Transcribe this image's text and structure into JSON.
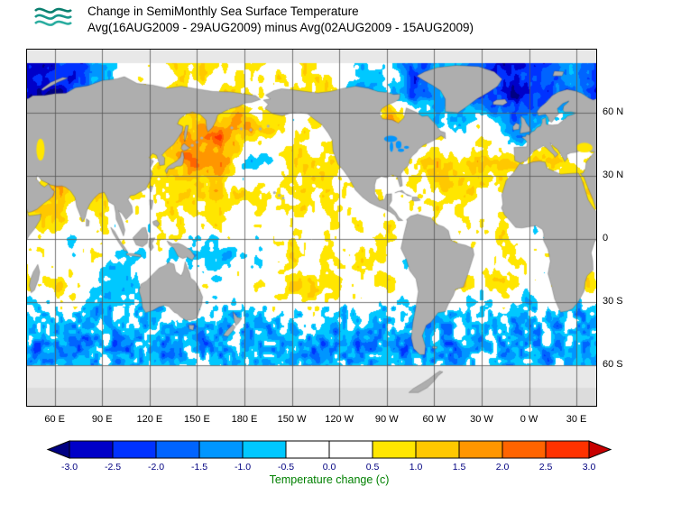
{
  "header": {
    "title_line1": "Change in SemiMonthly Sea Surface Temperature",
    "title_line2": "Avg(16AUG2009 - 29AUG2009) minus Avg(02AUG2009 - 15AUG2009)",
    "logo_wave_colors": [
      "#0a7f6f",
      "#17968a",
      "#2badA0"
    ]
  },
  "chart_data": {
    "type": "heatmap",
    "title": "Change in SemiMonthly Sea Surface Temperature",
    "subtitle": "Avg(16AUG2009 - 29AUG2009) minus Avg(02AUG2009 - 15AUG2009)",
    "projection": "equirectangular",
    "lon_range": [
      42.5,
      402.5
    ],
    "lat_range": [
      90,
      -79.3
    ],
    "lon_ticks": [
      60,
      90,
      120,
      150,
      180,
      210,
      240,
      270,
      300,
      330,
      360,
      390
    ],
    "lon_tick_labels": [
      "60 E",
      "90 E",
      "120 E",
      "150 E",
      "180 E",
      "150 W",
      "120 W",
      "90 W",
      "60 W",
      "30 W",
      "0 W",
      "30 E"
    ],
    "lat_ticks": [
      60,
      30,
      0,
      -30,
      -60
    ],
    "lat_tick_labels": [
      "60 N",
      "30 N",
      "0",
      "30 S",
      "60 S"
    ],
    "grid_line_color": "#555555",
    "land_color": "#aeaeae",
    "nodata_color": "#e8e8e8",
    "antarctica_color": "#dcdcdc",
    "colorbar": {
      "label": "Temperature change (c)",
      "label_color": "#008000",
      "tick_label_color": "#000080",
      "ticks": [
        -3.0,
        -2.5,
        -2.0,
        -1.5,
        -1.0,
        -0.5,
        0.0,
        0.5,
        1.0,
        1.5,
        2.0,
        2.5,
        3.0
      ],
      "tick_labels": [
        "-3.0",
        "-2.5",
        "-2.0",
        "-1.5",
        "-1.0",
        "-0.5",
        "0.0",
        "0.5",
        "1.0",
        "1.5",
        "2.0",
        "2.5",
        "3.0"
      ],
      "colors": [
        "#000082",
        "#0000C8",
        "#0032FF",
        "#0064FF",
        "#0096FF",
        "#00C8FF",
        "#FFFFFF",
        "#FFFFFF",
        "#FFE600",
        "#FFC800",
        "#FF9600",
        "#FF6400",
        "#FF3200",
        "#C80000"
      ]
    },
    "anomaly_grid": {
      "units": "degC change",
      "lon_start": 45,
      "lon_step": 15,
      "lat_start": 67.5,
      "lat_step": -15,
      "values": [
        [
          -2.5,
          -2.5,
          -2,
          -1,
          0,
          0,
          0.5,
          0.5,
          0.5,
          0.5,
          0.5,
          0,
          0.5,
          0,
          -1,
          0,
          -2,
          -1.5,
          -1,
          -2,
          -2.5,
          -2.5,
          -2,
          -1
        ],
        [
          0,
          0,
          0,
          0.5,
          0.5,
          0.5,
          1,
          1.5,
          2,
          1.5,
          1,
          0.5,
          0.5,
          0.5,
          0,
          2.5,
          1,
          0,
          -0.5,
          0.5,
          -1,
          -1.5,
          0,
          0
        ],
        [
          0.5,
          0.5,
          0.5,
          0,
          0,
          0.5,
          1.5,
          2.5,
          2,
          -0.5,
          -1,
          1,
          0.5,
          0.5,
          0,
          0,
          0.5,
          1,
          0.5,
          1,
          0.5,
          0.5,
          1.5,
          0.5
        ],
        [
          1,
          1.5,
          0.5,
          0.5,
          0.5,
          0.5,
          0.5,
          0.5,
          1,
          0.5,
          0.5,
          0.5,
          0.5,
          0.5,
          0.5,
          0,
          0.5,
          0.5,
          0.5,
          0.5,
          0.5,
          0.5,
          0,
          0.5
        ],
        [
          0.5,
          0.5,
          0,
          0.5,
          0,
          0,
          0.5,
          0.5,
          0.5,
          0,
          0.5,
          0.5,
          0,
          0.5,
          0.5,
          0.5,
          0,
          0.5,
          0,
          0.5,
          0.5,
          0,
          0,
          0
        ],
        [
          0,
          0.5,
          -0.5,
          0,
          -0.5,
          0,
          -0.5,
          -1,
          -1,
          -0.5,
          0,
          0.5,
          0.5,
          0,
          0.5,
          0.5,
          0,
          0,
          0.5,
          0,
          0.5,
          0,
          0,
          0.5
        ],
        [
          0.5,
          0.5,
          0.5,
          -0.5,
          -0.5,
          0,
          0,
          0.5,
          0.5,
          0.5,
          0.5,
          1,
          0.5,
          0.5,
          0.5,
          0.5,
          0,
          0.5,
          0.5,
          0.5,
          0.5,
          -0.5,
          0.5,
          0.5
        ],
        [
          -0.5,
          -1,
          -0.5,
          -1,
          -0.5,
          -1,
          -0.5,
          -1,
          -0.5,
          -1,
          -0.5,
          -1,
          -0.5,
          -1,
          -0.5,
          -1,
          -0.5,
          -1,
          -0.5,
          -1,
          -0.5,
          -1,
          -0.5,
          -1
        ],
        [
          -1.5,
          -1,
          -1.5,
          -1,
          -1.5,
          -1,
          -1.5,
          -1,
          -1.5,
          -1,
          -1.5,
          -1,
          -1.5,
          -1,
          -1.5,
          -1,
          -1.5,
          -1,
          -1.5,
          -1,
          -1.5,
          -1,
          -1.5,
          -1
        ],
        [
          -0.5,
          -0.5,
          -0.5,
          -0.5,
          -0.5,
          -0.5,
          -0.5,
          -0.5,
          -0.5,
          -0.5,
          -0.5,
          -0.5,
          -0.5,
          -0.5,
          -0.5,
          -0.5,
          -0.5,
          -0.5,
          -0.5,
          -0.5,
          -0.5,
          -0.5,
          -0.5,
          -0.5
        ]
      ]
    }
  }
}
